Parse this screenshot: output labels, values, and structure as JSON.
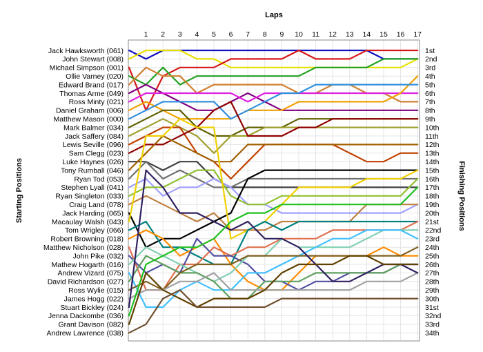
{
  "chart_data": {
    "type": "line",
    "title": "Laps",
    "ylabel_left": "Starting Positions",
    "ylabel_right": "Finishing Positions",
    "x": [
      0,
      1,
      2,
      3,
      4,
      5,
      6,
      7,
      8,
      9,
      10,
      11,
      12,
      13,
      14,
      15,
      16,
      17
    ],
    "x_tick_labels": [
      "1",
      "2",
      "3",
      "4",
      "5",
      "6",
      "7",
      "8",
      "9",
      "10",
      "11",
      "12",
      "13",
      "14",
      "15",
      "16",
      "17"
    ],
    "y_reversed": true,
    "ylim": [
      1,
      34
    ],
    "grid": true,
    "start_labels": [
      "Jack Hawksworth (061)",
      "John Stewart (008)",
      "Michael Simpson (001)",
      "Ollie Varney (020)",
      "Edward Brand (017)",
      "Thomas Arme (049)",
      "Ross Minty (021)",
      "Daniel Graham (006)",
      "Matthew Mason (000)",
      "Mark Balmer (034)",
      "Jack Saffery (084)",
      "Lewis Seville (096)",
      "Sam Clegg (023)",
      "Luke Haynes (026)",
      "Tony Rumball (046)",
      "Ryan Tod (053)",
      "Stephen Lyall (041)",
      "Ryan Singleton (033)",
      "Craig Land (078)",
      "Jack Harding (065)",
      "Macaulay Walsh (043)",
      "Tom Wrigley (066)",
      "Robert Browning (018)",
      "Matthew Nicholson (028)",
      "John Pike (032)",
      "Mathew Hogarth (016)",
      "Andrew Vizard (075)",
      "David Richardson (027)",
      "Ross Wylie (015)",
      "James Hogg (022)",
      "Stuart Bickley (024)",
      "Jenna Dackombe (036)",
      "Grant Davison (082)",
      "Andrew Lawrence (038)"
    ],
    "finish_labels": [
      "1st",
      "2nd",
      "3rd",
      "4th",
      "5th",
      "6th",
      "7th",
      "8th",
      "9th",
      "10th",
      "11th",
      "12th",
      "13th",
      "14th",
      "15th",
      "16th",
      "17th",
      "18th",
      "19th",
      "20th",
      "21st",
      "22nd",
      "23rd",
      "24th",
      "25th",
      "26th",
      "27th",
      "28th",
      "29th",
      "30th",
      "31st",
      "32nd",
      "33rd",
      "34th"
    ],
    "series": [
      {
        "color": "#1010c0",
        "values": [
          1,
          2,
          1,
          1,
          1,
          1,
          1,
          1,
          1,
          1,
          1,
          1,
          1,
          1,
          1,
          2,
          2,
          2
        ]
      },
      {
        "color": "#e8e000",
        "values": [
          2,
          1,
          1,
          1,
          2,
          2,
          3,
          3,
          3,
          3,
          3,
          3,
          3,
          3,
          3,
          3,
          3,
          2
        ]
      },
      {
        "color": "#d81818",
        "values": [
          3,
          8,
          4,
          3,
          3,
          3,
          2,
          2,
          2,
          2,
          1,
          2,
          2,
          2,
          1,
          1,
          1,
          1
        ]
      },
      {
        "color": "#20a020",
        "values": [
          4,
          5,
          3,
          5,
          4,
          4,
          4,
          4,
          4,
          4,
          4,
          3,
          3,
          3,
          3,
          2,
          2,
          2
        ]
      },
      {
        "color": "#d08030",
        "values": [
          5,
          3,
          4,
          4,
          6,
          5,
          5,
          5,
          5,
          5,
          6,
          6,
          5,
          5,
          6,
          6,
          7,
          7
        ]
      },
      {
        "color": "#800080",
        "values": [
          6,
          5,
          6,
          7,
          8,
          8,
          7,
          6,
          7,
          8,
          8,
          8,
          8,
          8,
          8,
          8,
          8,
          8
        ]
      },
      {
        "color": "#e020e0",
        "values": [
          7,
          6,
          6,
          6,
          6,
          6,
          6,
          7,
          6,
          6,
          6,
          6,
          6,
          6,
          6,
          6,
          6,
          6
        ]
      },
      {
        "color": "#f0a000",
        "values": [
          8,
          7,
          8,
          9,
          9,
          9,
          9,
          8,
          8,
          8,
          7,
          7,
          7,
          7,
          7,
          7,
          6,
          4
        ]
      },
      {
        "color": "#3090e0",
        "values": [
          9,
          8,
          7,
          7,
          7,
          7,
          9,
          8,
          7,
          6,
          6,
          5,
          5,
          5,
          5,
          5,
          5,
          5
        ]
      },
      {
        "color": "#606000",
        "values": [
          10,
          9,
          8,
          8,
          10,
          11,
          11,
          10,
          10,
          10,
          9,
          9,
          9,
          9,
          9,
          9,
          9,
          9
        ]
      },
      {
        "color": "#a0a030",
        "values": [
          11,
          10,
          9,
          10,
          11,
          13,
          11,
          11,
          10,
          10,
          10,
          10,
          10,
          10,
          10,
          10,
          10,
          10
        ]
      },
      {
        "color": "#c04000",
        "values": [
          12,
          11,
          10,
          10,
          13,
          14,
          16,
          14,
          12,
          12,
          12,
          12,
          12,
          13,
          14,
          14,
          13,
          13
        ]
      },
      {
        "color": "#900000",
        "values": [
          13,
          12,
          12,
          11,
          10,
          8,
          7,
          11,
          11,
          11,
          10,
          10,
          9,
          9,
          9,
          9,
          9,
          9
        ]
      },
      {
        "color": "#404040",
        "values": [
          14,
          14,
          15,
          14,
          14,
          16,
          17,
          17,
          17,
          17,
          17,
          17,
          17,
          17,
          17,
          17,
          17,
          17
        ]
      },
      {
        "color": "#a06000",
        "values": [
          15,
          13,
          11,
          12,
          13,
          14,
          14,
          12,
          12,
          12,
          12,
          12,
          12,
          12,
          12,
          12,
          12,
          12
        ]
      },
      {
        "color": "#707070",
        "values": [
          16,
          14,
          16,
          15,
          16,
          17,
          17,
          16,
          16,
          16,
          16,
          16,
          16,
          16,
          16,
          16,
          16,
          16
        ]
      },
      {
        "color": "#a0a0ff",
        "values": [
          17,
          16,
          18,
          17,
          17,
          16,
          17,
          19,
          19,
          20,
          20,
          20,
          20,
          20,
          20,
          20,
          20,
          19
        ]
      },
      {
        "color": "#90c030",
        "values": [
          18,
          17,
          17,
          16,
          15,
          15,
          18,
          19,
          19,
          18,
          18,
          18,
          18,
          18,
          18,
          18,
          18,
          16
        ]
      },
      {
        "color": "#c08040",
        "values": [
          19,
          18,
          19,
          20,
          21,
          20,
          22,
          22,
          22,
          21,
          21,
          21,
          21,
          21,
          19,
          19,
          19,
          19
        ]
      },
      {
        "color": "#000000",
        "values": [
          20,
          24,
          23,
          23,
          22,
          21,
          20,
          16,
          15,
          15,
          15,
          15,
          15,
          15,
          15,
          15,
          15,
          15
        ]
      },
      {
        "color": "#f0d000",
        "values": [
          21,
          11,
          11,
          9,
          10,
          10,
          23,
          22,
          21,
          19,
          17,
          17,
          17,
          17,
          16,
          16,
          16,
          15
        ]
      },
      {
        "color": "#008080",
        "values": [
          22,
          21,
          24,
          24,
          25,
          26,
          26,
          22,
          21,
          22,
          21,
          21,
          21,
          21,
          21,
          21,
          21,
          21
        ]
      },
      {
        "color": "#ff8c00",
        "values": [
          23,
          22,
          23,
          25,
          24,
          23,
          26,
          28,
          29,
          29,
          27,
          25,
          25,
          25,
          25,
          24,
          25,
          25
        ]
      },
      {
        "color": "#e07050",
        "values": [
          24,
          29,
          29,
          26,
          26,
          24,
          25,
          24,
          24,
          23,
          23,
          23,
          22,
          22,
          22,
          22,
          22,
          21
        ]
      },
      {
        "color": "#5050a0",
        "values": [
          25,
          27,
          26,
          27,
          23,
          25,
          25,
          26,
          28,
          28,
          29,
          28,
          28,
          27,
          27,
          27,
          26,
          26
        ]
      },
      {
        "color": "#80d0b0",
        "values": [
          26,
          24,
          25,
          26,
          27,
          28,
          27,
          25,
          25,
          23,
          24,
          24,
          24,
          24,
          23,
          22,
          22,
          22
        ]
      },
      {
        "color": "#40c0ff",
        "values": [
          27,
          31,
          31,
          29,
          28,
          29,
          29,
          27,
          27,
          26,
          25,
          24,
          23,
          23,
          22,
          22,
          22,
          23
        ]
      },
      {
        "color": "#60a060",
        "values": [
          28,
          25,
          26,
          27,
          27,
          28,
          30,
          30,
          28,
          28,
          28,
          27,
          27,
          27,
          27,
          27,
          26,
          26
        ]
      },
      {
        "color": "#806020",
        "values": [
          29,
          28,
          29,
          27,
          26,
          26,
          26,
          25,
          25,
          25,
          25,
          25,
          25,
          25,
          25,
          25,
          25,
          24
        ]
      },
      {
        "color": "#a0a0a0",
        "values": [
          30,
          29,
          29,
          28,
          28,
          27,
          29,
          29,
          29,
          29,
          29,
          29,
          29,
          29,
          28,
          28,
          28,
          27
        ]
      },
      {
        "color": "#302060",
        "values": [
          31,
          15,
          17,
          20,
          20,
          21,
          22,
          21,
          23,
          23,
          24,
          26,
          28,
          28,
          27,
          26,
          26,
          27
        ]
      },
      {
        "color": "#20c020",
        "values": [
          32,
          26,
          25,
          24,
          24,
          23,
          21,
          20,
          20,
          19,
          19,
          19,
          19,
          19,
          19,
          19,
          19,
          17
        ]
      },
      {
        "color": "#604000",
        "values": [
          33,
          27,
          29,
          30,
          31,
          30,
          30,
          30,
          29,
          27,
          26,
          26,
          26,
          25,
          25,
          26,
          26,
          26
        ]
      },
      {
        "color": "#705030",
        "values": [
          34,
          33,
          30,
          29,
          31,
          31,
          31,
          31,
          31,
          30,
          30,
          30,
          30,
          30,
          30,
          30,
          30,
          30
        ]
      }
    ]
  }
}
